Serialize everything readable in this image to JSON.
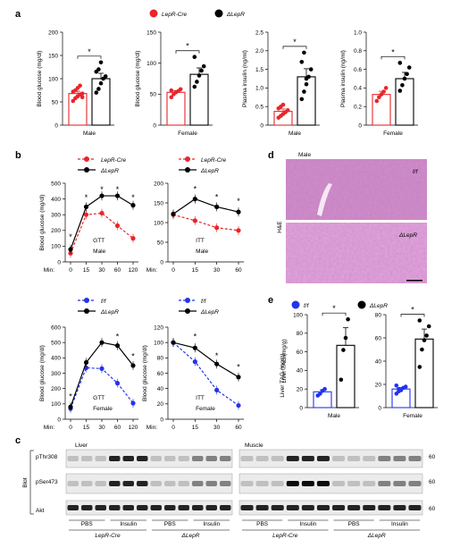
{
  "panels": {
    "a": "a",
    "b": "b",
    "c": "c",
    "d": "d",
    "e": "e"
  },
  "legend_a": {
    "cre": "LepR-Cre",
    "ko": "ΔLepR"
  },
  "legend_b": {
    "cre": "LepR-Cre",
    "ko": "ΔLepR",
    "ff": "f/f"
  },
  "legend_e": {
    "ff": "f/f",
    "ko": "ΔLepR"
  },
  "colors": {
    "red": "#e8262b",
    "blue": "#2233ee",
    "black": "#000000"
  },
  "chart_data": [
    {
      "id": "a1",
      "type": "bar",
      "xlabel": "Male",
      "ylabel": "Blood glucose (mg/dl)",
      "ylim": [
        0,
        200
      ],
      "yticks": [
        0,
        50,
        100,
        150,
        200
      ],
      "stars": "*",
      "series": [
        {
          "values": [
            68
          ],
          "points": [
            52,
            58,
            62,
            66,
            68,
            72,
            75,
            80,
            85,
            60
          ],
          "color": "red"
        },
        {
          "values": [
            100
          ],
          "points": [
            70,
            78,
            90,
            100,
            105,
            115,
            120,
            135
          ],
          "color": "black"
        }
      ]
    },
    {
      "id": "a2",
      "type": "bar",
      "xlabel": "Female",
      "ylabel": "Blood glucose (mg/dl)",
      "ylim": [
        0,
        150
      ],
      "yticks": [
        0,
        50,
        100,
        150
      ],
      "stars": "*",
      "series": [
        {
          "values": [
            53
          ],
          "points": [
            45,
            50,
            53,
            55,
            58,
            56
          ],
          "color": "red"
        },
        {
          "values": [
            82
          ],
          "points": [
            62,
            70,
            80,
            88,
            95,
            110
          ],
          "color": "black"
        }
      ]
    },
    {
      "id": "a3",
      "type": "bar",
      "xlabel": "Male",
      "ylabel": "Plasma insulin (ng/ml)",
      "ylim": [
        0,
        2.5
      ],
      "yticks": [
        0,
        0.5,
        1.0,
        1.5,
        2.0,
        2.5
      ],
      "ytick_labels": [
        "0",
        "0.5",
        "1.0",
        "1.5",
        "2.0",
        "2.5"
      ],
      "stars": "*",
      "series": [
        {
          "values": [
            0.37
          ],
          "points": [
            0.2,
            0.25,
            0.3,
            0.35,
            0.4,
            0.45,
            0.5,
            0.55
          ],
          "color": "red"
        },
        {
          "values": [
            1.3
          ],
          "points": [
            0.7,
            0.9,
            1.1,
            1.3,
            1.5,
            1.7,
            1.95,
            1.25
          ],
          "color": "black"
        }
      ]
    },
    {
      "id": "a4",
      "type": "bar",
      "xlabel": "Female",
      "ylabel": "Plasma insulin (ng/ml)",
      "ylim": [
        0,
        1.0
      ],
      "yticks": [
        0,
        0.2,
        0.4,
        0.6,
        0.8,
        1.0
      ],
      "ytick_labels": [
        "0",
        "0.2",
        "0.4",
        "0.6",
        "0.8",
        "1.0"
      ],
      "stars": "*",
      "series": [
        {
          "values": [
            0.33
          ],
          "points": [
            0.26,
            0.3,
            0.33,
            0.36,
            0.4
          ],
          "color": "red"
        },
        {
          "values": [
            0.5
          ],
          "points": [
            0.37,
            0.43,
            0.5,
            0.55,
            0.62,
            0.67
          ],
          "color": "black"
        }
      ]
    },
    {
      "id": "b1",
      "type": "line",
      "title": "GTT",
      "subtitle": "Male",
      "xlabel": "Min:",
      "ylabel": "Blood glucose (mg/dl)",
      "x": [
        0,
        15,
        30,
        60,
        120
      ],
      "ylim": [
        0,
        500
      ],
      "yticks": [
        0,
        100,
        200,
        300,
        400,
        500
      ],
      "series": [
        {
          "name": "LepR-Cre",
          "values": [
            55,
            300,
            310,
            230,
            150
          ],
          "color": "red",
          "dashed": true
        },
        {
          "name": "ΔLepR",
          "values": [
            80,
            350,
            420,
            420,
            360
          ],
          "color": "black"
        }
      ],
      "stars": [
        {
          "x": 0,
          "y": 160
        },
        {
          "x": 15,
          "y": 410
        },
        {
          "x": 30,
          "y": 460
        },
        {
          "x": 60,
          "y": 460
        },
        {
          "x": 120,
          "y": 410
        }
      ]
    },
    {
      "id": "b2",
      "type": "line",
      "title": "ITT",
      "subtitle": "Male",
      "xlabel": "Min:",
      "ylabel": "",
      "x": [
        0,
        15,
        30,
        60
      ],
      "ylim": [
        0,
        200
      ],
      "yticks": [
        0,
        50,
        100,
        150,
        200
      ],
      "series": [
        {
          "name": "LepR-Cre",
          "values": [
            120,
            105,
            87,
            80
          ],
          "color": "red",
          "dashed": true
        },
        {
          "name": "ΔLepR",
          "values": [
            122,
            160,
            140,
            127
          ],
          "color": "black"
        }
      ],
      "stars": [
        {
          "x": 15,
          "y": 185
        },
        {
          "x": 30,
          "y": 165
        },
        {
          "x": 60,
          "y": 155
        }
      ]
    },
    {
      "id": "b3",
      "type": "line",
      "title": "GTT",
      "subtitle": "Female",
      "xlabel": "Min:",
      "ylabel": "Blood glucose (mg/dl)",
      "x": [
        0,
        15,
        30,
        60,
        120
      ],
      "ylim": [
        0,
        600
      ],
      "yticks": [
        0,
        100,
        200,
        300,
        400,
        500,
        600
      ],
      "series": [
        {
          "name": "f/f",
          "values": [
            70,
            335,
            330,
            235,
            105
          ],
          "color": "blue",
          "dashed": true
        },
        {
          "name": "ΔLepR",
          "values": [
            80,
            370,
            500,
            480,
            350
          ],
          "color": "black"
        }
      ],
      "stars": [
        {
          "x": 0,
          "y": 150
        },
        {
          "x": 60,
          "y": 540
        },
        {
          "x": 120,
          "y": 410
        }
      ]
    },
    {
      "id": "b4",
      "type": "line",
      "title": "ITT",
      "subtitle": "Female",
      "xlabel": "Min:",
      "ylabel": "Blood glucose (mg/dl)",
      "x": [
        0,
        15,
        30,
        60
      ],
      "ylim": [
        0,
        120
      ],
      "yticks": [
        0,
        20,
        40,
        60,
        80,
        100,
        120
      ],
      "series": [
        {
          "name": "f/f",
          "values": [
            100,
            75,
            38,
            18
          ],
          "color": "blue",
          "dashed": true
        },
        {
          "name": "ΔLepR",
          "values": [
            100,
            93,
            72,
            55
          ],
          "color": "black"
        }
      ],
      "stars": [
        {
          "x": 15,
          "y": 108
        },
        {
          "x": 30,
          "y": 83
        },
        {
          "x": 60,
          "y": 68
        }
      ]
    },
    {
      "id": "e1",
      "type": "bar",
      "xlabel": "Male",
      "ylabel": "Liver TAG (mg/g)",
      "ylim": [
        0,
        100
      ],
      "yticks": [
        0,
        20,
        40,
        60,
        80,
        100
      ],
      "stars": "*",
      "series": [
        {
          "values": [
            17
          ],
          "points": [
            13,
            15,
            18,
            20
          ],
          "color": "blue"
        },
        {
          "values": [
            67
          ],
          "points": [
            30,
            62,
            75,
            95
          ],
          "color": "black"
        }
      ]
    },
    {
      "id": "e2",
      "type": "bar",
      "xlabel": "Female",
      "ylabel": "",
      "ylim": [
        0,
        80
      ],
      "yticks": [
        0,
        20,
        40,
        60,
        80
      ],
      "stars": "*",
      "series": [
        {
          "values": [
            16
          ],
          "points": [
            12,
            14,
            15,
            17,
            18,
            19,
            16
          ],
          "color": "blue"
        },
        {
          "values": [
            59
          ],
          "points": [
            35,
            50,
            58,
            62,
            70,
            75
          ],
          "color": "black"
        }
      ]
    }
  ],
  "histology": {
    "male": "Male",
    "ff": "f/f",
    "ko": "ΔLepR",
    "he": "H&E"
  },
  "blot": {
    "liver": "Liver",
    "muscle": "Muscle",
    "blot": "Blot",
    "rows": [
      "pThr308",
      "pSer473",
      "Akt"
    ],
    "mw": [
      "60",
      "60",
      "60"
    ],
    "treat": [
      "PBS",
      "Insulin",
      "PBS",
      "Insulin",
      "PBS",
      "Insulin",
      "PBS",
      "Insulin"
    ],
    "geno": [
      "LepR-Cre",
      "ΔLepR",
      "LepR-Cre",
      "ΔLepR"
    ]
  }
}
